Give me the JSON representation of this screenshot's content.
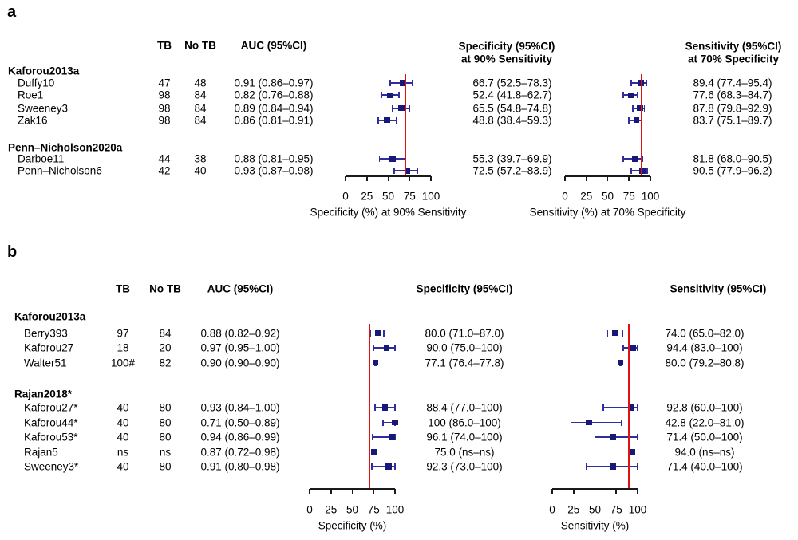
{
  "colors": {
    "marker": "#181878",
    "ci": "#2e2e9f",
    "refline": "#e21111",
    "axis": "#1a1a1a",
    "text": "#000000"
  },
  "chart_data": [
    {
      "type": "forest",
      "panel_label": "a",
      "table_headers": {
        "tb": "TB",
        "no_tb": "No TB",
        "auc": "AUC (95%CI)"
      },
      "plot_headers": {
        "spec": [
          "Specificity (95%CI)",
          "at 90% Sensitivity"
        ],
        "sens": [
          "Sensitivity (95%CI)",
          "at 70% Specificity"
        ]
      },
      "axes": {
        "spec": {
          "title": "Specificity (%) at 90% Sensitivity",
          "ticks": [
            0,
            25,
            50,
            75,
            100
          ],
          "range": [
            0,
            100
          ],
          "refline": 70,
          "grid": false
        },
        "sens": {
          "title": "Sensitivity (%) at 70% Specificity",
          "ticks": [
            0,
            25,
            50,
            75,
            100
          ],
          "range": [
            0,
            100
          ],
          "refline": 90,
          "grid": false
        }
      },
      "groups": [
        {
          "name": "Kaforou2013a",
          "rows": [
            {
              "label": "Duffy10",
              "tb": "47",
              "no_tb": "48",
              "auc": "0.91 (0.86–0.97)",
              "spec": {
                "text": "66.7 (52.5–78.3)",
                "est": 66.7,
                "lo": 52.5,
                "hi": 78.3
              },
              "sens": {
                "text": "89.4 (77.4–95.4)",
                "est": 89.4,
                "lo": 77.4,
                "hi": 95.4
              }
            },
            {
              "label": "Roe1",
              "tb": "98",
              "no_tb": "84",
              "auc": "0.82 (0.76–0.88)",
              "spec": {
                "text": "52.4 (41.8–62.7)",
                "est": 52.4,
                "lo": 41.8,
                "hi": 62.7
              },
              "sens": {
                "text": "77.6 (68.3–84.7)",
                "est": 77.6,
                "lo": 68.3,
                "hi": 84.7
              }
            },
            {
              "label": "Sweeney3",
              "tb": "98",
              "no_tb": "84",
              "auc": "0.89 (0.84–0.94)",
              "spec": {
                "text": "65.5 (54.8–74.8)",
                "est": 65.5,
                "lo": 54.8,
                "hi": 74.8
              },
              "sens": {
                "text": "87.8 (79.8–92.9)",
                "est": 87.8,
                "lo": 79.8,
                "hi": 92.9
              }
            },
            {
              "label": "Zak16",
              "tb": "98",
              "no_tb": "84",
              "auc": "0.86 (0.81–0.91)",
              "spec": {
                "text": "48.8 (38.4–59.3)",
                "est": 48.8,
                "lo": 38.4,
                "hi": 59.3
              },
              "sens": {
                "text": "83.7 (75.1–89.7)",
                "est": 83.7,
                "lo": 75.1,
                "hi": 89.7
              }
            }
          ]
        },
        {
          "name": "Penn–Nicholson2020a",
          "rows": [
            {
              "label": "Darboe11",
              "tb": "44",
              "no_tb": "38",
              "auc": "0.88 (0.81–0.95)",
              "spec": {
                "text": "55.3 (39.7–69.9)",
                "est": 55.3,
                "lo": 39.7,
                "hi": 69.9
              },
              "sens": {
                "text": "81.8 (68.0–90.5)",
                "est": 81.8,
                "lo": 68.0,
                "hi": 90.5
              }
            },
            {
              "label": "Penn–Nicholson6",
              "tb": "42",
              "no_tb": "40",
              "auc": "0.93 (0.87–0.98)",
              "spec": {
                "text": "72.5 (57.2–83.9)",
                "est": 72.5,
                "lo": 57.2,
                "hi": 83.9
              },
              "sens": {
                "text": "90.5 (77.9–96.2)",
                "est": 90.5,
                "lo": 77.9,
                "hi": 96.2
              }
            }
          ]
        }
      ]
    },
    {
      "type": "forest",
      "panel_label": "b",
      "table_headers": {
        "tb": "TB",
        "no_tb": "No TB",
        "auc": "AUC (95%CI)"
      },
      "plot_headers": {
        "spec": [
          "Specificity (95%CI)"
        ],
        "sens": [
          "Sensitivity (95%CI)"
        ]
      },
      "axes": {
        "spec": {
          "title": "Specificity (%)",
          "ticks": [
            0,
            25,
            50,
            75,
            100
          ],
          "range": [
            0,
            100
          ],
          "refline": 70,
          "grid": false
        },
        "sens": {
          "title": "Sensitivity (%)",
          "ticks": [
            0,
            25,
            50,
            75,
            100
          ],
          "range": [
            0,
            100
          ],
          "refline": 90,
          "grid": false
        }
      },
      "groups": [
        {
          "name": "Kaforou2013a",
          "rows": [
            {
              "label": "Berry393",
              "tb": "97",
              "no_tb": "84",
              "auc": "0.88 (0.82–0.92)",
              "spec": {
                "text": "80.0 (71.0–87.0)",
                "est": 80.0,
                "lo": 71.0,
                "hi": 87.0
              },
              "sens": {
                "text": "74.0 (65.0–82.0)",
                "est": 74.0,
                "lo": 65.0,
                "hi": 82.0
              }
            },
            {
              "label": "Kaforou27",
              "tb": "18",
              "no_tb": "20",
              "auc": "0.97 (0.95–1.00)",
              "spec": {
                "text": "90.0 (75.0–100)",
                "est": 90.0,
                "lo": 75.0,
                "hi": 100
              },
              "sens": {
                "text": "94.4 (83.0–100)",
                "est": 94.4,
                "lo": 83.0,
                "hi": 100
              }
            },
            {
              "label": "Walter51",
              "tb": "100#",
              "no_tb": "82",
              "auc": "0.90 (0.90–0.90)",
              "spec": {
                "text": "77.1 (76.4–77.8)",
                "est": 77.1,
                "lo": 76.4,
                "hi": 77.8
              },
              "sens": {
                "text": "80.0 (79.2–80.8)",
                "est": 80.0,
                "lo": 79.2,
                "hi": 80.8
              }
            }
          ]
        },
        {
          "name": "Rajan2018*",
          "rows": [
            {
              "label": "Kaforou27*",
              "tb": "40",
              "no_tb": "80",
              "auc": "0.93 (0.84–1.00)",
              "spec": {
                "text": "88.4 (77.0–100)",
                "est": 88.4,
                "lo": 77.0,
                "hi": 100
              },
              "sens": {
                "text": "92.8 (60.0–100)",
                "est": 92.8,
                "lo": 60.0,
                "hi": 100
              }
            },
            {
              "label": "Kaforou44*",
              "tb": "40",
              "no_tb": "80",
              "auc": "0.71 (0.50–0.89)",
              "spec": {
                "text": "100 (86.0–100)",
                "est": 100,
                "lo": 86.0,
                "hi": 100
              },
              "sens": {
                "text": "42.8 (22.0–81.0)",
                "est": 42.8,
                "lo": 22.0,
                "hi": 81.0
              }
            },
            {
              "label": "Kaforou53*",
              "tb": "40",
              "no_tb": "80",
              "auc": "0.94 (0.86–0.99)",
              "spec": {
                "text": "96.1 (74.0–100)",
                "est": 96.1,
                "lo": 74.0,
                "hi": 100
              },
              "sens": {
                "text": "71.4 (50.0–100)",
                "est": 71.4,
                "lo": 50.0,
                "hi": 100
              }
            },
            {
              "label": "Rajan5",
              "tb": "ns",
              "no_tb": "ns",
              "auc": "0.87 (0.72–0.98)",
              "spec": {
                "text": "75.0 (ns–ns)",
                "est": 75.0,
                "lo": null,
                "hi": null
              },
              "sens": {
                "text": "94.0 (ns–ns)",
                "est": 94.0,
                "lo": null,
                "hi": null
              }
            },
            {
              "label": "Sweeney3*",
              "tb": "40",
              "no_tb": "80",
              "auc": "0.91 (0.80–0.98)",
              "spec": {
                "text": "92.3 (73.0–100)",
                "est": 92.3,
                "lo": 73.0,
                "hi": 100
              },
              "sens": {
                "text": "71.4 (40.0–100)",
                "est": 71.4,
                "lo": 40.0,
                "hi": 100
              }
            }
          ]
        }
      ]
    }
  ]
}
